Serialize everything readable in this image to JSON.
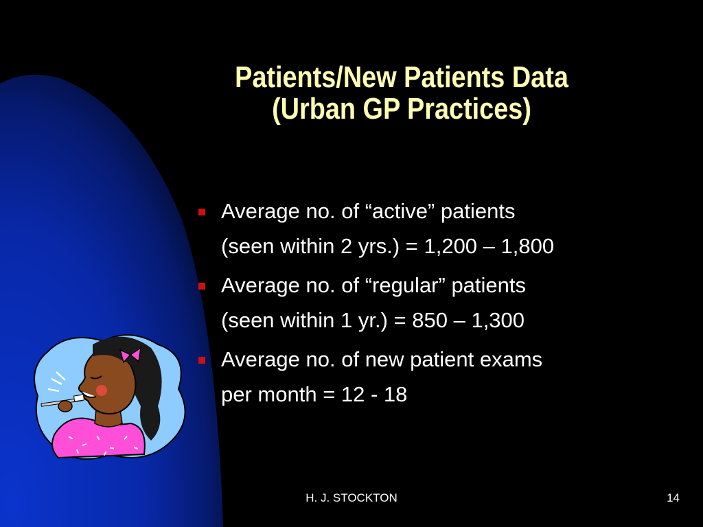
{
  "slide": {
    "title_line1": "Patients/New Patients Data",
    "title_line2": "(Urban GP Practices)",
    "bullets": [
      {
        "line1": "Average no. of “active” patients",
        "line2": "(seen within 2 yrs.) = 1,200 – 1,800"
      },
      {
        "line1": "Average no. of “regular” patients",
        "line2": "(seen within 1 yr.) = 850 – 1,300"
      },
      {
        "line1": "Average no. of new patient exams",
        "line2": "per month = 12 - 18"
      }
    ],
    "footer_author": "H. J. STOCKTON",
    "page_number": "14"
  },
  "colors": {
    "background": "#000000",
    "arc_blue": "#0a30c0",
    "title": "#fffcb4",
    "body_text": "#ffffff",
    "bullet": "#cc1010"
  },
  "icons": {
    "bullet": "square-bullet-icon",
    "clipart": "girl-brushing-teeth-icon"
  }
}
